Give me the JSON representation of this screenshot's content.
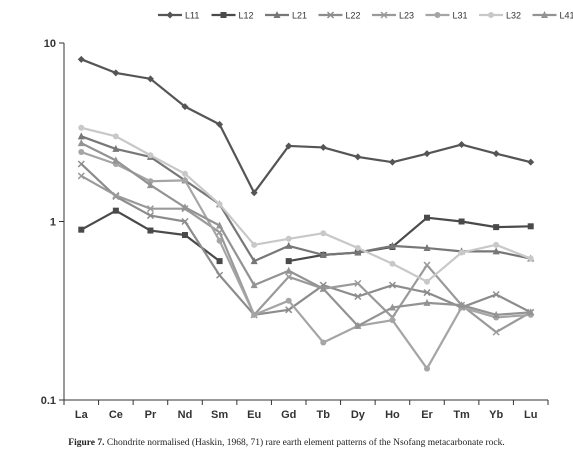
{
  "chart_data": {
    "type": "line",
    "yscale": "log",
    "ylim": [
      0.1,
      10
    ],
    "ytick_labels": [
      "10",
      "1",
      "0.1"
    ],
    "categories": [
      "La",
      "Ce",
      "Pr",
      "Nd",
      "Sm",
      "Eu",
      "Gd",
      "Tb",
      "Dy",
      "Ho",
      "Er",
      "Tm",
      "Yb",
      "Lu"
    ],
    "legend_position": "top",
    "grid": false,
    "series": [
      {
        "name": "L11",
        "color": "#555555",
        "marker": "diamond",
        "values": [
          8.1,
          6.8,
          6.3,
          4.4,
          3.5,
          1.45,
          2.65,
          2.6,
          2.3,
          2.15,
          2.4,
          2.7,
          2.4,
          2.15
        ]
      },
      {
        "name": "L12",
        "color": "#4a4a4a",
        "marker": "square",
        "values": [
          0.9,
          1.15,
          0.89,
          0.84,
          0.6,
          null,
          0.6,
          0.65,
          0.67,
          0.72,
          1.05,
          1.0,
          0.93,
          0.94
        ]
      },
      {
        "name": "L21",
        "color": "#777777",
        "marker": "triangle",
        "values": [
          3.0,
          2.55,
          2.3,
          1.7,
          1.25,
          0.6,
          0.73,
          0.65,
          0.67,
          0.73,
          0.71,
          0.68,
          0.68,
          0.62
        ]
      },
      {
        "name": "L22",
        "color": "#8c8c8c",
        "marker": "x",
        "values": [
          2.1,
          1.38,
          1.08,
          1.0,
          0.5,
          0.3,
          0.32,
          0.44,
          0.38,
          0.44,
          0.4,
          0.33,
          0.39,
          0.31
        ]
      },
      {
        "name": "L23",
        "color": "#9a9a9a",
        "marker": "x",
        "values": [
          1.8,
          1.4,
          1.18,
          1.18,
          0.87,
          0.3,
          0.49,
          0.42,
          0.45,
          0.29,
          0.57,
          0.34,
          0.24,
          0.31
        ]
      },
      {
        "name": "L31",
        "color": "#a5a5a5",
        "marker": "circle",
        "values": [
          2.45,
          2.1,
          1.68,
          1.7,
          0.78,
          0.3,
          0.36,
          0.21,
          0.26,
          0.28,
          0.15,
          0.33,
          0.29,
          0.3
        ]
      },
      {
        "name": "L32",
        "color": "#c8c8c8",
        "marker": "circle",
        "values": [
          3.35,
          3.0,
          2.35,
          1.85,
          1.25,
          0.74,
          0.8,
          0.86,
          0.71,
          0.58,
          0.46,
          0.67,
          0.74,
          0.62
        ]
      },
      {
        "name": "L41",
        "color": "#939393",
        "marker": "triangle",
        "values": [
          2.75,
          2.2,
          1.6,
          1.2,
          0.95,
          0.44,
          0.53,
          0.42,
          0.26,
          0.33,
          0.35,
          0.34,
          0.3,
          0.31
        ]
      }
    ]
  },
  "caption": {
    "label": "Figure 7.",
    "text": " Chondrite normalised (Haskin, 1968, 71) rare earth element patterns of the Nsofang metacarbonate rock."
  }
}
